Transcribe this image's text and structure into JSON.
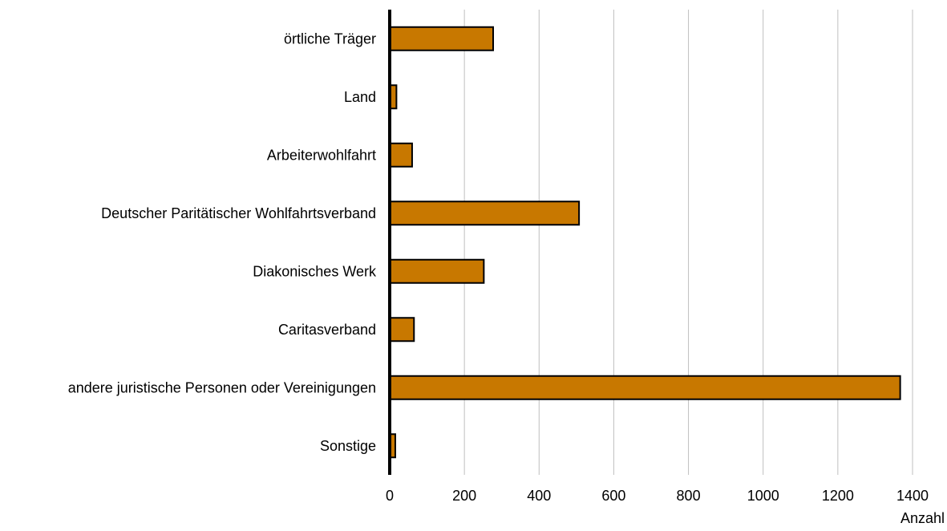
{
  "chart_data": {
    "type": "bar",
    "orientation": "horizontal",
    "categories": [
      "örtliche Träger",
      "Land",
      "Arbeiterwohlfahrt",
      "Deutscher Paritätischer Wohlfahrtsverband",
      "Diakonisches Werk",
      "Caritasverband",
      "andere juristische Personen oder Vereinigungen",
      "Sonstige"
    ],
    "series": [
      {
        "values": [
          277,
          18,
          60,
          507,
          252,
          65,
          1367,
          15
        ]
      }
    ],
    "title": "",
    "xlabel": "Anzahl",
    "ylabel": "",
    "xlim": [
      0,
      1400
    ],
    "xticks": [
      0,
      200,
      400,
      600,
      800,
      1000,
      1200,
      1400
    ],
    "xtick_labels": [
      "0",
      "200",
      "400",
      "600",
      "800",
      "1000",
      "1200",
      "1400"
    ],
    "grid": "vertical",
    "legend": "none",
    "colors": {
      "bar_fill": "#C87800",
      "bar_stroke": "#000000",
      "grid": "#BFBFBF",
      "axis": "#000000"
    }
  }
}
